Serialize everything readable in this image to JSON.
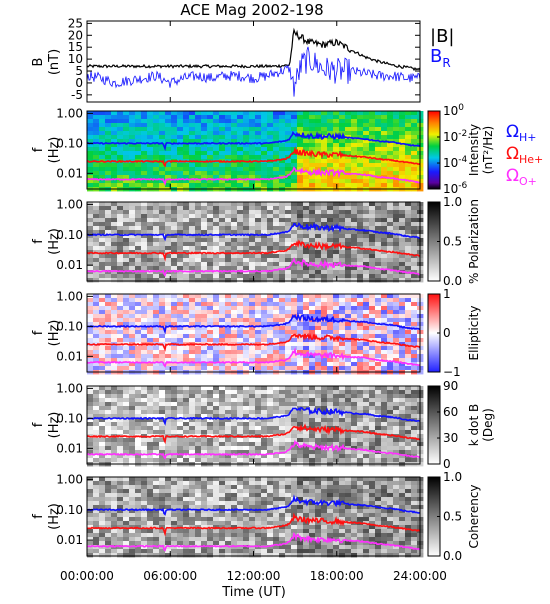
{
  "chart_data": {
    "type": "heatmap",
    "title": "ACE Mag 2002-198",
    "xlabel": "Time (UT)",
    "x_ticks": [
      "00:00:00",
      "06:00:00",
      "12:00:00",
      "18:00:00",
      "24:00:00"
    ],
    "x_tick_hours": [
      0,
      6,
      12,
      18,
      24
    ],
    "xlim_hours": [
      0,
      24
    ],
    "line_panel": {
      "ylabel": [
        "B",
        "(nT)"
      ],
      "ylim": [
        -8,
        26
      ],
      "y_ticks": [
        -5,
        0,
        5,
        10,
        15,
        20,
        25
      ],
      "series": [
        {
          "name": "|B|",
          "color": "#000000",
          "hours": [
            0,
            1.5,
            3,
            4.5,
            6,
            7.5,
            9,
            10.5,
            12,
            13.5,
            14.6,
            14.9,
            15.2,
            16,
            17,
            18,
            19,
            20,
            21,
            22,
            23,
            24
          ],
          "values": [
            7,
            7,
            7,
            7,
            7,
            7,
            7,
            7,
            7,
            7,
            7.5,
            21,
            20,
            17,
            16,
            17,
            14,
            11,
            9,
            7.5,
            6.5,
            5.5
          ]
        },
        {
          "name": "B_R",
          "color": "#1010ff",
          "hours": [
            0,
            1,
            2,
            3,
            4,
            5,
            6,
            7,
            8,
            9,
            10,
            11,
            12,
            13,
            14,
            14.6,
            14.9,
            15.5,
            16,
            17,
            18,
            19,
            20,
            21,
            22,
            23,
            24
          ],
          "values": [
            3,
            2,
            0,
            1,
            2,
            3,
            0,
            2,
            3,
            2,
            3,
            3,
            2,
            3,
            5,
            6,
            -2,
            8,
            10,
            6,
            5,
            5,
            4,
            3,
            3,
            2,
            2
          ]
        }
      ],
      "legend": [
        {
          "main": "|B|",
          "sub": "",
          "color": "#000000"
        },
        {
          "main": "B",
          "sub": "R",
          "color": "#1010ff"
        }
      ]
    },
    "spectrogram_panels": [
      {
        "ylabel": [
          "f",
          "(Hz)"
        ],
        "colorbar": "rainbow",
        "colorbar_ticks": [
          {
            "main": "10",
            "exp": "0",
            "f": 1
          },
          {
            "main": "10",
            "exp": "-2",
            "f": 0.667
          },
          {
            "main": "10",
            "exp": "-4",
            "f": 0.333
          },
          {
            "main": "10",
            "exp": "-6",
            "f": 0
          }
        ],
        "colorbar_label": [
          "Intensity",
          "(nT²/Hz)"
        ]
      },
      {
        "ylabel": [
          "f",
          "(Hz)"
        ],
        "colorbar": "gray",
        "colorbar_ticks": [
          {
            "main": "1.0",
            "exp": "",
            "f": 1
          },
          {
            "main": "0.5",
            "exp": "",
            "f": 0.5
          },
          {
            "main": "0.0",
            "exp": "",
            "f": 0
          }
        ],
        "colorbar_label": [
          "% Polarization"
        ]
      },
      {
        "ylabel": [
          "f",
          "(Hz)"
        ],
        "colorbar": "redblue",
        "colorbar_ticks": [
          {
            "main": "1",
            "exp": "",
            "f": 1
          },
          {
            "main": "0",
            "exp": "",
            "f": 0.5
          },
          {
            "main": "−1",
            "exp": "",
            "f": 0
          }
        ],
        "colorbar_label": [
          "Ellipticity"
        ]
      },
      {
        "ylabel": [
          "f",
          "(Hz)"
        ],
        "colorbar": "gray",
        "colorbar_ticks": [
          {
            "main": "90",
            "exp": "",
            "f": 1
          },
          {
            "main": "60",
            "exp": "",
            "f": 0.667
          },
          {
            "main": "30",
            "exp": "",
            "f": 0.333
          },
          {
            "main": "0",
            "exp": "",
            "f": 0
          }
        ],
        "colorbar_label": [
          "k dot B",
          "(Deg)"
        ]
      },
      {
        "ylabel": [
          "f",
          "(Hz)"
        ],
        "colorbar": "gray",
        "colorbar_ticks": [
          {
            "main": "1.0",
            "exp": "",
            "f": 1
          },
          {
            "main": "0.5",
            "exp": "",
            "f": 0.5
          },
          {
            "main": "0.0",
            "exp": "",
            "f": 0
          }
        ],
        "colorbar_label": [
          "Coherency"
        ]
      }
    ],
    "freq_ylim_hz": [
      0.003,
      1.2
    ],
    "freq_ticks": [
      {
        "label": "1.00",
        "hz": 1.0
      },
      {
        "label": "0.10",
        "hz": 0.1
      },
      {
        "label": "0.01",
        "hz": 0.01
      }
    ],
    "gyrofrequency_lines": [
      {
        "name": "ΩH+",
        "symbol": "Ω",
        "sub": "H+",
        "color": "#1010ff",
        "hours": [
          0,
          2,
          4,
          5.5,
          5.6,
          5.7,
          7,
          9,
          11,
          13,
          14.3,
          14.6,
          14.9,
          15.3,
          16,
          17,
          18,
          19,
          20,
          21,
          22,
          23,
          24
        ],
        "hz": [
          0.1,
          0.1,
          0.1,
          0.1,
          0.06,
          0.1,
          0.1,
          0.1,
          0.1,
          0.1,
          0.12,
          0.14,
          0.22,
          0.2,
          0.18,
          0.17,
          0.17,
          0.15,
          0.14,
          0.12,
          0.11,
          0.09,
          0.08
        ]
      },
      {
        "name": "ΩHe+",
        "symbol": "Ω",
        "sub": "He+",
        "color": "#ff1010",
        "hours": [
          0,
          2,
          4,
          5.5,
          5.6,
          5.7,
          7,
          9,
          11,
          13,
          14.3,
          14.6,
          14.9,
          15.3,
          16,
          17,
          18,
          19,
          20,
          21,
          22,
          23,
          24
        ],
        "hz": [
          0.025,
          0.025,
          0.025,
          0.025,
          0.015,
          0.025,
          0.025,
          0.025,
          0.025,
          0.025,
          0.03,
          0.035,
          0.055,
          0.05,
          0.045,
          0.042,
          0.042,
          0.038,
          0.035,
          0.03,
          0.027,
          0.023,
          0.02
        ]
      },
      {
        "name": "ΩO+",
        "symbol": "Ω",
        "sub": "O+",
        "color": "#ff30ff",
        "hours": [
          0,
          2,
          4,
          5.5,
          5.6,
          5.7,
          7,
          9,
          11,
          13,
          14.3,
          14.6,
          14.9,
          15.3,
          16,
          17,
          18,
          19,
          20,
          21,
          22,
          23,
          24
        ],
        "hz": [
          0.0063,
          0.0063,
          0.0063,
          0.0063,
          0.004,
          0.0063,
          0.0063,
          0.0063,
          0.0063,
          0.0063,
          0.0075,
          0.009,
          0.014,
          0.0125,
          0.011,
          0.0105,
          0.0105,
          0.0095,
          0.009,
          0.0075,
          0.0068,
          0.0058,
          0.005
        ]
      }
    ],
    "grid": false
  }
}
